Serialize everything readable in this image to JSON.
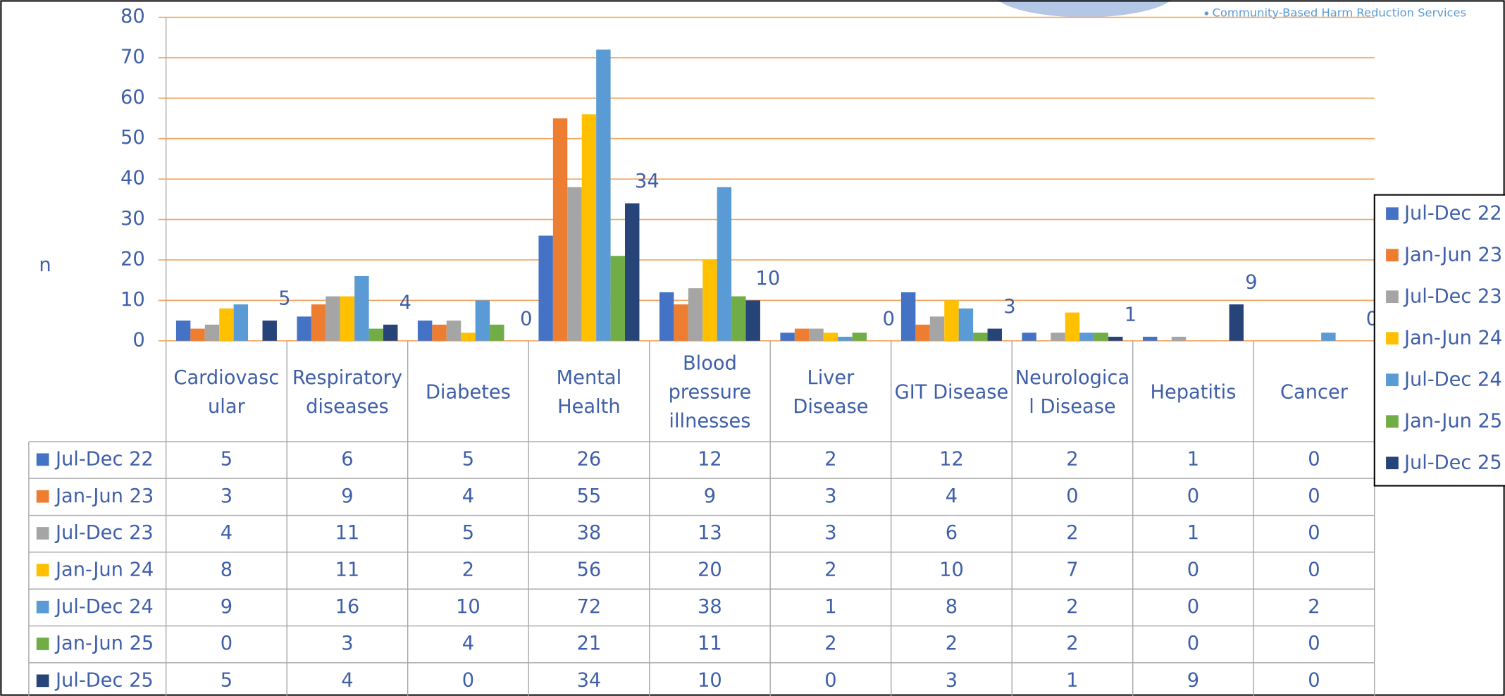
{
  "chart_data": {
    "type": "bar",
    "header_text": "Community-Based Harm Reduction Services",
    "y_label": "n",
    "categories": [
      "Cardiovascular",
      "Respiratory diseases",
      "Diabetes",
      "Mental Health",
      "Blood pressure illnesses",
      "Liver Disease",
      "GIT Disease",
      "Neurological Disease",
      "Hepatitis",
      "Cancer"
    ],
    "series": [
      {
        "name": "Jul-Dec 22",
        "color": "#4472c4",
        "values": [
          5,
          6,
          5,
          26,
          12,
          2,
          12,
          2,
          1,
          0
        ]
      },
      {
        "name": "Jan-Jun 23",
        "color": "#ed7d31",
        "values": [
          3,
          9,
          4,
          55,
          9,
          3,
          4,
          0,
          0,
          0
        ]
      },
      {
        "name": "Jul-Dec 23",
        "color": "#a5a5a5",
        "values": [
          4,
          11,
          5,
          38,
          13,
          3,
          6,
          2,
          1,
          0
        ]
      },
      {
        "name": "Jan-Jun 24",
        "color": "#ffc000",
        "values": [
          8,
          11,
          2,
          56,
          20,
          2,
          10,
          7,
          0,
          0
        ]
      },
      {
        "name": "Jul-Dec 24",
        "color": "#5b9bd5",
        "values": [
          9,
          16,
          10,
          72,
          38,
          1,
          8,
          2,
          0,
          2
        ]
      },
      {
        "name": "Jan-Jun 25",
        "color": "#70ad47",
        "values": [
          0,
          3,
          4,
          21,
          11,
          2,
          2,
          2,
          0,
          0
        ]
      },
      {
        "name": "Jul-Dec 25",
        "color": "#264478",
        "values": [
          5,
          4,
          0,
          34,
          10,
          0,
          3,
          1,
          9,
          0
        ]
      }
    ],
    "ylim": [
      0,
      80
    ],
    "yticks": [
      0,
      10,
      20,
      30,
      40,
      50,
      60,
      70,
      80
    ],
    "grid": true,
    "legend": "right"
  }
}
